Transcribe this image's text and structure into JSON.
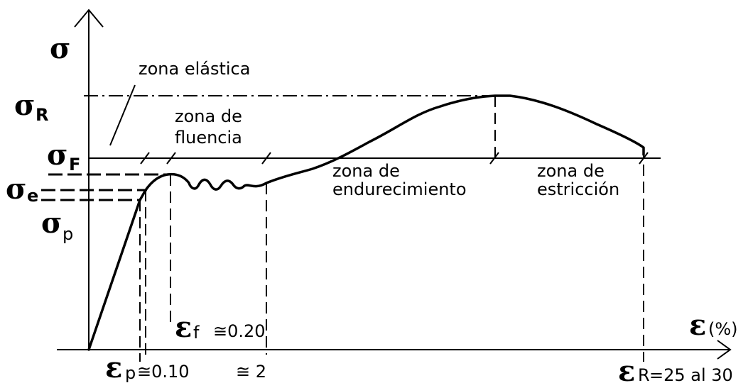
{
  "axes": {
    "y_symbol": "σ",
    "x_symbol": "ε",
    "x_unit": "(%)"
  },
  "stress_levels": {
    "R": {
      "symbol": "σ",
      "sub": "R"
    },
    "F": {
      "symbol": "σ",
      "sub": "F"
    },
    "e": {
      "symbol": "σ",
      "sub": "e"
    },
    "p": {
      "symbol": "σ",
      "sub": "p"
    }
  },
  "zones": {
    "elastic": "zona elástica",
    "yield_line1": "zona de",
    "yield_line2": "fluencia",
    "hardening_line1": "zona de",
    "hardening_line2": "endurecimiento",
    "necking_line1": "zona de",
    "necking_line2": "estricción"
  },
  "strain_marks": {
    "f": {
      "symbol": "ε",
      "sub": "f",
      "value": "≅0.20"
    },
    "p": {
      "symbol": "ε",
      "sub": "p",
      "value": "≅0.10"
    },
    "two": {
      "value": "≅ 2"
    },
    "R": {
      "symbol": "ε",
      "sub": "R",
      "value": "=25 al 30"
    }
  }
}
